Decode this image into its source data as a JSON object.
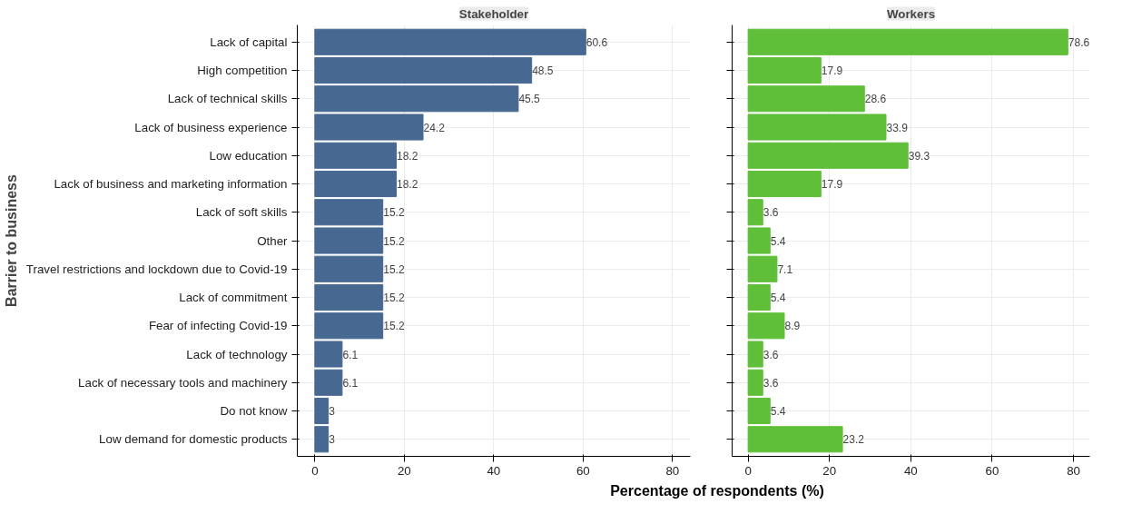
{
  "chart_data": [
    {
      "type": "bar",
      "orientation": "horizontal",
      "title": "Stakeholder",
      "ylabel": "Barrier to business",
      "xlabel": "Percentage of respondents (%)",
      "categories": [
        "Lack of capital",
        "High competition",
        "Lack of technical skills",
        "Lack of business experience",
        "Low education",
        "Lack of business and marketing information",
        "Lack of soft skills",
        "Other",
        "Travel restrictions and lockdown due to Covid-19",
        "Lack of commitment",
        "Fear of infecting Covid-19",
        "Lack of technology",
        "Lack of necessary tools and machinery",
        "Do not know",
        "Low demand for domestic products"
      ],
      "series": [
        {
          "color": "#466891",
          "values": [
            60.6,
            48.5,
            45.5,
            24.2,
            18.2,
            18.2,
            15.2,
            15.2,
            15.2,
            15.2,
            15.2,
            6.1,
            6.1,
            3,
            3
          ]
        }
      ],
      "xlim": [
        -3.93,
        84
      ],
      "xticks": [
        0,
        20,
        40,
        60,
        80
      ],
      "grid": true,
      "data_labels": true
    },
    {
      "type": "bar",
      "orientation": "horizontal",
      "title": "Workers",
      "categories": [
        null,
        null,
        null,
        null,
        null,
        null,
        null,
        null,
        null,
        null,
        null,
        null,
        null,
        null,
        null
      ],
      "series": [
        {
          "color": "#5fbf38",
          "values": [
            78.6,
            17.9,
            28.6,
            33.9,
            39.3,
            17.9,
            3.6,
            5.4,
            7.1,
            5.4,
            8.9,
            3.6,
            3.6,
            5.4,
            23.2
          ]
        }
      ],
      "xlim": [
        -3.93,
        84
      ],
      "xticks": [
        0,
        20,
        40,
        60,
        80
      ],
      "grid": true,
      "data_labels": true,
      "tick_labels": "x"
    }
  ]
}
